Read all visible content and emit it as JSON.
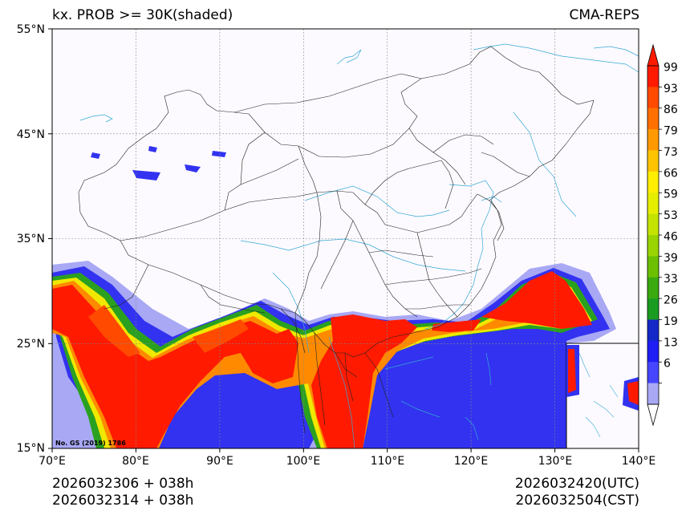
{
  "header": {
    "title_left": "kx. PROB >= 30K(shaded)",
    "title_right": "CMA-REPS"
  },
  "axes": {
    "lat_labels": [
      "55°N",
      "45°N",
      "35°N",
      "25°N",
      "15°N"
    ],
    "lon_labels": [
      "70°E",
      "80°E",
      "90°E",
      "100°E",
      "110°E",
      "120°E",
      "130°E",
      "140°E"
    ]
  },
  "map": {
    "region": "China and surroundings",
    "lat_range": [
      15,
      55
    ],
    "lon_range": [
      70,
      140
    ],
    "credit": "No. GS (2019) 1786",
    "shaded_variable": "K-index probability >= 30K"
  },
  "colorbar": {
    "ticks": [
      "99",
      "93",
      "86",
      "79",
      "73",
      "66",
      "59",
      "53",
      "46",
      "39",
      "33",
      "26",
      "19",
      "13",
      "6"
    ],
    "colors": [
      "#ff1a00",
      "#ff4a00",
      "#ff7000",
      "#ff9900",
      "#ffc400",
      "#ffee00",
      "#e6ee00",
      "#c4e400",
      "#9ad400",
      "#6cc000",
      "#3aaa10",
      "#1a9c20",
      "#1428c8",
      "#1e1ef5",
      "#4646ff",
      "#a8a8f5"
    ]
  },
  "footer": {
    "init_time_utc": "2026032306  +  038h",
    "init_time_cst": "2026032314  +  038h",
    "valid_time_utc": "2026032420(UTC)",
    "valid_time_cst": "2026032504(CST)"
  }
}
